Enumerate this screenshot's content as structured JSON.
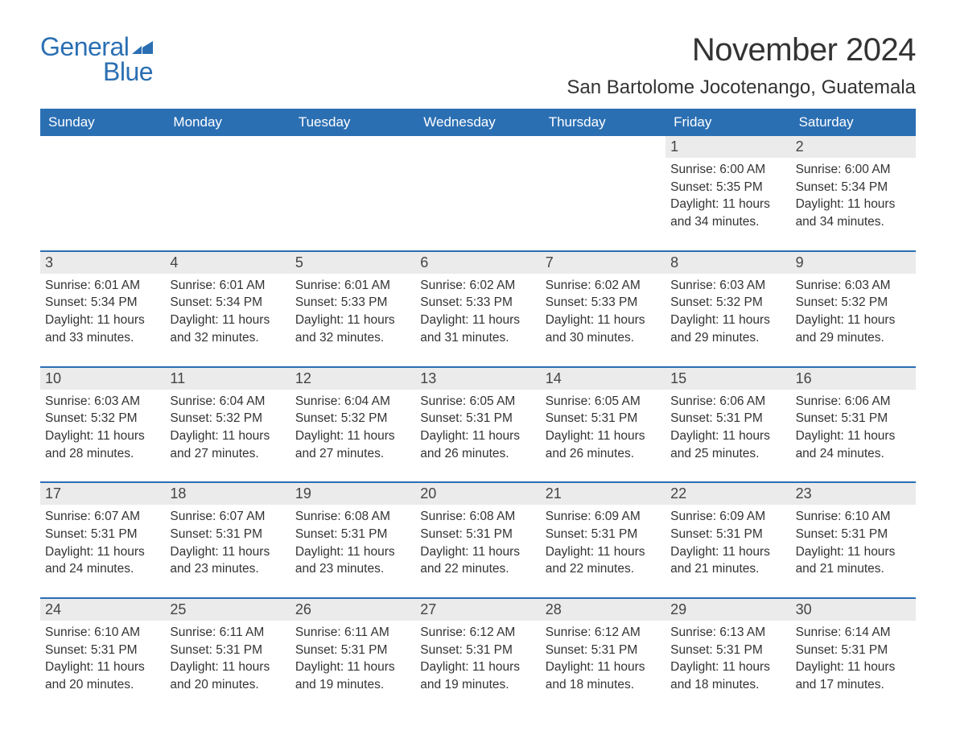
{
  "logo": {
    "text_general": "General",
    "text_blue": "Blue",
    "brand_color": "#2b6fb3"
  },
  "title": "November 2024",
  "location": "San Bartolome Jocotenango, Guatemala",
  "colors": {
    "header_bg": "#2b6fb3",
    "header_text": "#ffffff",
    "daynum_bg": "#ebebeb",
    "text": "#333333",
    "row_border": "#2b6fb3",
    "background": "#ffffff"
  },
  "typography": {
    "title_fontsize": 40,
    "location_fontsize": 24,
    "dayheader_fontsize": 17,
    "daynum_fontsize": 18,
    "body_fontsize": 15.5,
    "font_family": "Arial"
  },
  "day_headers": [
    "Sunday",
    "Monday",
    "Tuesday",
    "Wednesday",
    "Thursday",
    "Friday",
    "Saturday"
  ],
  "weeks": [
    [
      {
        "empty": true
      },
      {
        "empty": true
      },
      {
        "empty": true
      },
      {
        "empty": true
      },
      {
        "empty": true
      },
      {
        "day": "1",
        "sunrise": "Sunrise: 6:00 AM",
        "sunset": "Sunset: 5:35 PM",
        "daylight1": "Daylight: 11 hours",
        "daylight2": "and 34 minutes."
      },
      {
        "day": "2",
        "sunrise": "Sunrise: 6:00 AM",
        "sunset": "Sunset: 5:34 PM",
        "daylight1": "Daylight: 11 hours",
        "daylight2": "and 34 minutes."
      }
    ],
    [
      {
        "day": "3",
        "sunrise": "Sunrise: 6:01 AM",
        "sunset": "Sunset: 5:34 PM",
        "daylight1": "Daylight: 11 hours",
        "daylight2": "and 33 minutes."
      },
      {
        "day": "4",
        "sunrise": "Sunrise: 6:01 AM",
        "sunset": "Sunset: 5:34 PM",
        "daylight1": "Daylight: 11 hours",
        "daylight2": "and 32 minutes."
      },
      {
        "day": "5",
        "sunrise": "Sunrise: 6:01 AM",
        "sunset": "Sunset: 5:33 PM",
        "daylight1": "Daylight: 11 hours",
        "daylight2": "and 32 minutes."
      },
      {
        "day": "6",
        "sunrise": "Sunrise: 6:02 AM",
        "sunset": "Sunset: 5:33 PM",
        "daylight1": "Daylight: 11 hours",
        "daylight2": "and 31 minutes."
      },
      {
        "day": "7",
        "sunrise": "Sunrise: 6:02 AM",
        "sunset": "Sunset: 5:33 PM",
        "daylight1": "Daylight: 11 hours",
        "daylight2": "and 30 minutes."
      },
      {
        "day": "8",
        "sunrise": "Sunrise: 6:03 AM",
        "sunset": "Sunset: 5:32 PM",
        "daylight1": "Daylight: 11 hours",
        "daylight2": "and 29 minutes."
      },
      {
        "day": "9",
        "sunrise": "Sunrise: 6:03 AM",
        "sunset": "Sunset: 5:32 PM",
        "daylight1": "Daylight: 11 hours",
        "daylight2": "and 29 minutes."
      }
    ],
    [
      {
        "day": "10",
        "sunrise": "Sunrise: 6:03 AM",
        "sunset": "Sunset: 5:32 PM",
        "daylight1": "Daylight: 11 hours",
        "daylight2": "and 28 minutes."
      },
      {
        "day": "11",
        "sunrise": "Sunrise: 6:04 AM",
        "sunset": "Sunset: 5:32 PM",
        "daylight1": "Daylight: 11 hours",
        "daylight2": "and 27 minutes."
      },
      {
        "day": "12",
        "sunrise": "Sunrise: 6:04 AM",
        "sunset": "Sunset: 5:32 PM",
        "daylight1": "Daylight: 11 hours",
        "daylight2": "and 27 minutes."
      },
      {
        "day": "13",
        "sunrise": "Sunrise: 6:05 AM",
        "sunset": "Sunset: 5:31 PM",
        "daylight1": "Daylight: 11 hours",
        "daylight2": "and 26 minutes."
      },
      {
        "day": "14",
        "sunrise": "Sunrise: 6:05 AM",
        "sunset": "Sunset: 5:31 PM",
        "daylight1": "Daylight: 11 hours",
        "daylight2": "and 26 minutes."
      },
      {
        "day": "15",
        "sunrise": "Sunrise: 6:06 AM",
        "sunset": "Sunset: 5:31 PM",
        "daylight1": "Daylight: 11 hours",
        "daylight2": "and 25 minutes."
      },
      {
        "day": "16",
        "sunrise": "Sunrise: 6:06 AM",
        "sunset": "Sunset: 5:31 PM",
        "daylight1": "Daylight: 11 hours",
        "daylight2": "and 24 minutes."
      }
    ],
    [
      {
        "day": "17",
        "sunrise": "Sunrise: 6:07 AM",
        "sunset": "Sunset: 5:31 PM",
        "daylight1": "Daylight: 11 hours",
        "daylight2": "and 24 minutes."
      },
      {
        "day": "18",
        "sunrise": "Sunrise: 6:07 AM",
        "sunset": "Sunset: 5:31 PM",
        "daylight1": "Daylight: 11 hours",
        "daylight2": "and 23 minutes."
      },
      {
        "day": "19",
        "sunrise": "Sunrise: 6:08 AM",
        "sunset": "Sunset: 5:31 PM",
        "daylight1": "Daylight: 11 hours",
        "daylight2": "and 23 minutes."
      },
      {
        "day": "20",
        "sunrise": "Sunrise: 6:08 AM",
        "sunset": "Sunset: 5:31 PM",
        "daylight1": "Daylight: 11 hours",
        "daylight2": "and 22 minutes."
      },
      {
        "day": "21",
        "sunrise": "Sunrise: 6:09 AM",
        "sunset": "Sunset: 5:31 PM",
        "daylight1": "Daylight: 11 hours",
        "daylight2": "and 22 minutes."
      },
      {
        "day": "22",
        "sunrise": "Sunrise: 6:09 AM",
        "sunset": "Sunset: 5:31 PM",
        "daylight1": "Daylight: 11 hours",
        "daylight2": "and 21 minutes."
      },
      {
        "day": "23",
        "sunrise": "Sunrise: 6:10 AM",
        "sunset": "Sunset: 5:31 PM",
        "daylight1": "Daylight: 11 hours",
        "daylight2": "and 21 minutes."
      }
    ],
    [
      {
        "day": "24",
        "sunrise": "Sunrise: 6:10 AM",
        "sunset": "Sunset: 5:31 PM",
        "daylight1": "Daylight: 11 hours",
        "daylight2": "and 20 minutes."
      },
      {
        "day": "25",
        "sunrise": "Sunrise: 6:11 AM",
        "sunset": "Sunset: 5:31 PM",
        "daylight1": "Daylight: 11 hours",
        "daylight2": "and 20 minutes."
      },
      {
        "day": "26",
        "sunrise": "Sunrise: 6:11 AM",
        "sunset": "Sunset: 5:31 PM",
        "daylight1": "Daylight: 11 hours",
        "daylight2": "and 19 minutes."
      },
      {
        "day": "27",
        "sunrise": "Sunrise: 6:12 AM",
        "sunset": "Sunset: 5:31 PM",
        "daylight1": "Daylight: 11 hours",
        "daylight2": "and 19 minutes."
      },
      {
        "day": "28",
        "sunrise": "Sunrise: 6:12 AM",
        "sunset": "Sunset: 5:31 PM",
        "daylight1": "Daylight: 11 hours",
        "daylight2": "and 18 minutes."
      },
      {
        "day": "29",
        "sunrise": "Sunrise: 6:13 AM",
        "sunset": "Sunset: 5:31 PM",
        "daylight1": "Daylight: 11 hours",
        "daylight2": "and 18 minutes."
      },
      {
        "day": "30",
        "sunrise": "Sunrise: 6:14 AM",
        "sunset": "Sunset: 5:31 PM",
        "daylight1": "Daylight: 11 hours",
        "daylight2": "and 17 minutes."
      }
    ]
  ]
}
